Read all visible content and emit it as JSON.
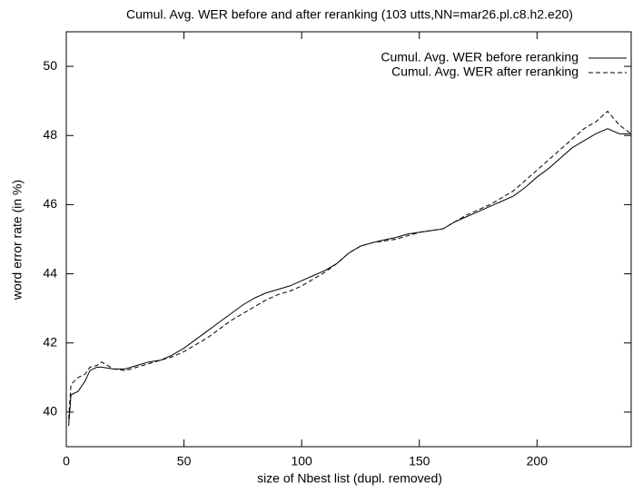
{
  "chart_data": {
    "type": "line",
    "title": "Cumul. Avg. WER before and after reranking (103 utts,NN=mar26.pl.c8.h2.e20)",
    "xlabel": "size of Nbest list (dupl. removed)",
    "ylabel": "word error rate (in %)",
    "x": [
      1,
      2,
      5,
      8,
      10,
      13,
      15,
      20,
      25,
      30,
      35,
      40,
      45,
      50,
      55,
      60,
      65,
      70,
      75,
      80,
      85,
      90,
      95,
      100,
      105,
      110,
      115,
      120,
      125,
      130,
      135,
      140,
      145,
      150,
      155,
      160,
      165,
      170,
      175,
      180,
      185,
      190,
      195,
      200,
      205,
      210,
      215,
      220,
      225,
      230,
      235,
      240
    ],
    "series": [
      {
        "name": "Cumul. Avg. WER before reranking",
        "color": "#000000",
        "dash": "solid",
        "values": [
          39.6,
          40.5,
          40.6,
          40.9,
          41.2,
          41.3,
          41.3,
          41.25,
          41.25,
          41.35,
          41.45,
          41.5,
          41.65,
          41.85,
          42.1,
          42.35,
          42.6,
          42.85,
          43.1,
          43.3,
          43.45,
          43.55,
          43.65,
          43.8,
          43.95,
          44.1,
          44.3,
          44.6,
          44.8,
          44.9,
          44.98,
          45.05,
          45.15,
          45.2,
          45.25,
          45.3,
          45.5,
          45.65,
          45.8,
          45.95,
          46.1,
          46.25,
          46.5,
          46.8,
          47.05,
          47.35,
          47.65,
          47.85,
          48.05,
          48.2,
          48.05,
          48.05
        ]
      },
      {
        "name": "Cumul. Avg. WER after reranking",
        "color": "#000000",
        "dash": "dashed",
        "values": [
          39.8,
          40.8,
          41.0,
          41.1,
          41.3,
          41.35,
          41.45,
          41.25,
          41.2,
          41.3,
          41.4,
          41.5,
          41.6,
          41.75,
          41.95,
          42.15,
          42.4,
          42.65,
          42.85,
          43.05,
          43.25,
          43.4,
          43.5,
          43.65,
          43.85,
          44.05,
          44.3,
          44.6,
          44.8,
          44.9,
          44.95,
          45.0,
          45.1,
          45.2,
          45.25,
          45.3,
          45.5,
          45.7,
          45.85,
          46.0,
          46.2,
          46.4,
          46.7,
          47.0,
          47.3,
          47.6,
          47.9,
          48.2,
          48.4,
          48.7,
          48.3,
          48.05
        ]
      }
    ],
    "xlim": [
      0,
      240
    ],
    "xticks": [
      0,
      50,
      100,
      150,
      200
    ],
    "ylim": [
      39,
      51
    ],
    "yticks": [
      40,
      42,
      44,
      46,
      48,
      50
    ],
    "legend": "top-right",
    "grid": false
  }
}
